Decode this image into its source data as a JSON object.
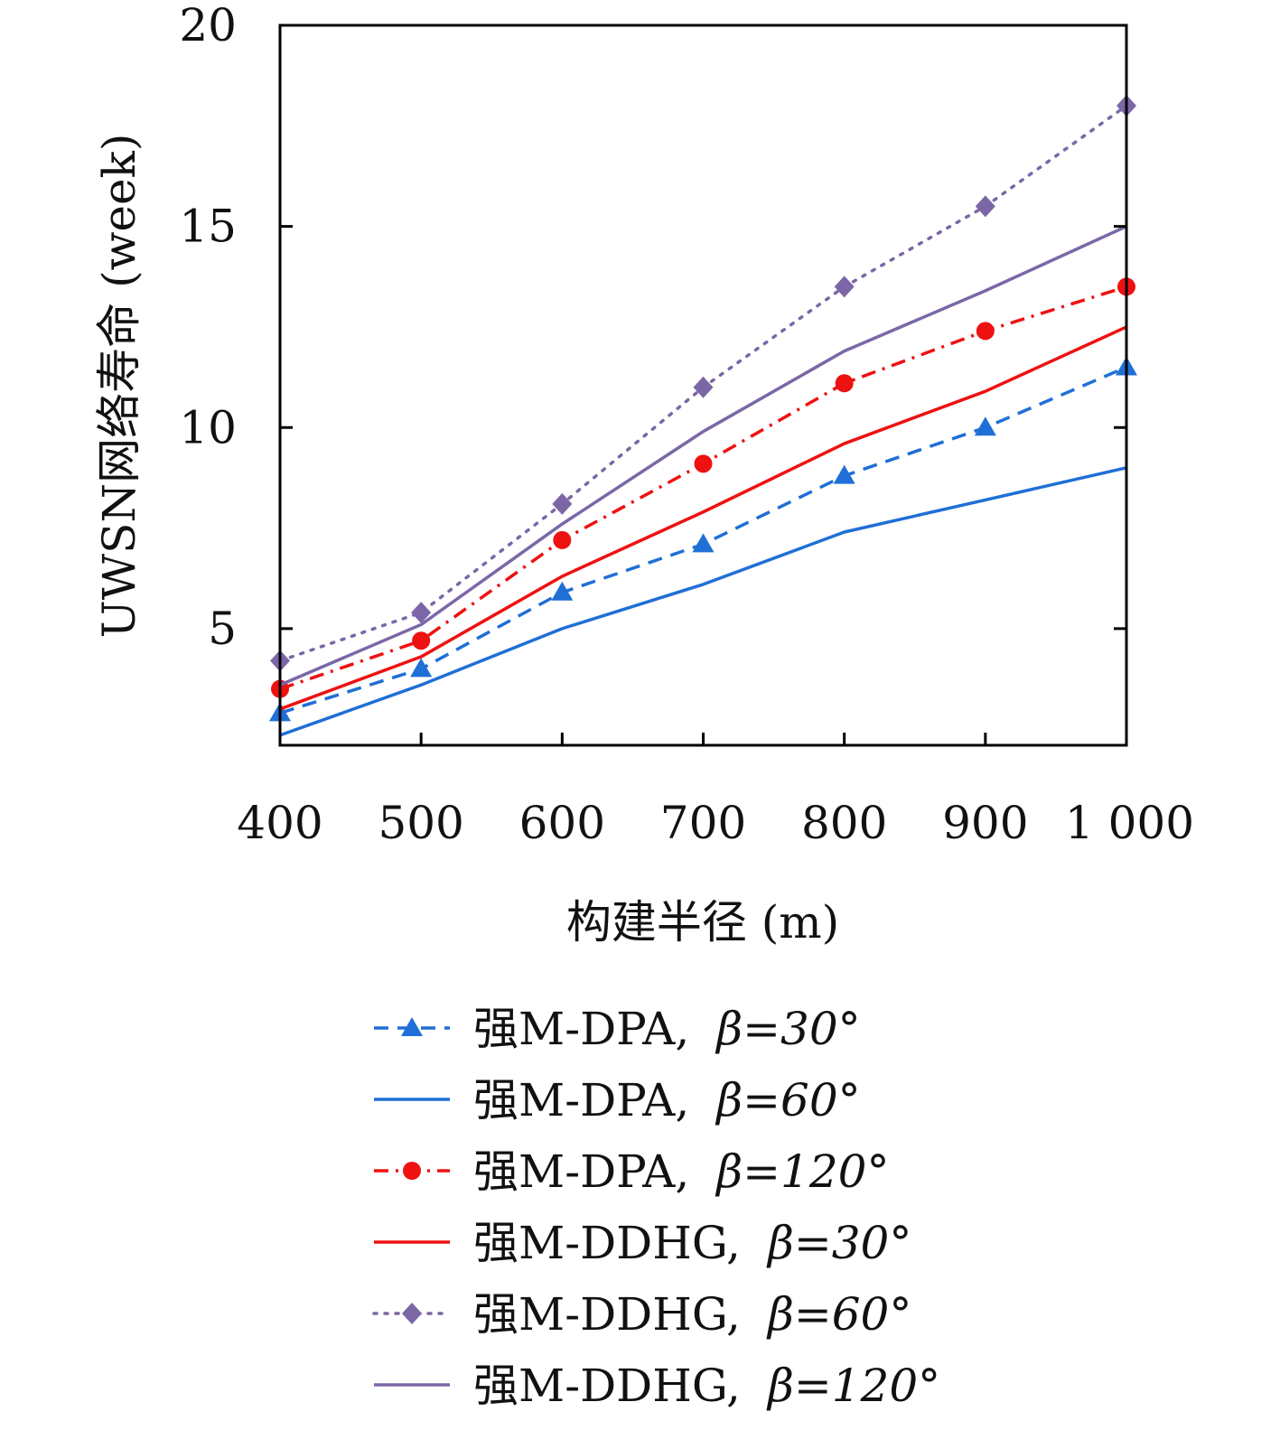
{
  "chart_data": {
    "type": "line",
    "xlabel": "构建半径 (m)",
    "ylabel": "UWSN网络寿命 (week)",
    "x": [
      400,
      500,
      600,
      700,
      800,
      900,
      1000
    ],
    "x_tick_labels": [
      "400",
      "500",
      "600",
      "700",
      "800",
      "900",
      "1 000"
    ],
    "y_ticks": [
      5,
      10,
      15,
      20
    ],
    "y_tick_labels": [
      "5",
      "10",
      "15",
      "20"
    ],
    "xlim": [
      400,
      1000
    ],
    "ylim": [
      2.1,
      20
    ],
    "grid": false,
    "legend_position": "bottom",
    "series": [
      {
        "name": "强M-DPA, β=30°",
        "label_main": "强M-DPA,",
        "label_math": "β=30°",
        "values": [
          2.9,
          4.0,
          5.9,
          7.1,
          8.8,
          10.0,
          11.5
        ],
        "color": "#1f6fd6",
        "dash": "dashed",
        "marker": "triangle"
      },
      {
        "name": "强M-DPA, β=60°",
        "label_main": "强M-DPA,",
        "label_math": "β=60°",
        "values": [
          2.35,
          3.6,
          5.0,
          6.1,
          7.4,
          8.2,
          9.0
        ],
        "color": "#1f6fd6",
        "dash": "solid",
        "marker": "none"
      },
      {
        "name": "强M-DPA, β=120°",
        "label_main": "强M-DPA,",
        "label_math": "β=120°",
        "values": [
          3.5,
          4.7,
          7.2,
          9.1,
          11.1,
          12.4,
          13.5
        ],
        "color": "#ee1111",
        "dash": "dashdot",
        "marker": "circle"
      },
      {
        "name": "强M-DDHG, β=30°",
        "label_main": "强M-DDHG,",
        "label_math": "β=30°",
        "values": [
          3.0,
          4.3,
          6.3,
          7.9,
          9.6,
          10.9,
          12.5
        ],
        "color": "#ee1111",
        "dash": "solid",
        "marker": "none"
      },
      {
        "name": "强M-DDHG, β=60°",
        "label_main": "强M-DDHG,",
        "label_math": "β=60°",
        "values": [
          4.2,
          5.4,
          8.1,
          11.0,
          13.5,
          15.5,
          18.0
        ],
        "color": "#7b67a6",
        "dash": "dotted",
        "marker": "diamond"
      },
      {
        "name": "强M-DDHG, β=120°",
        "label_main": "强M-DDHG,",
        "label_math": "β=120°",
        "values": [
          3.6,
          5.1,
          7.6,
          9.9,
          11.9,
          13.4,
          15.0
        ],
        "color": "#7b67a6",
        "dash": "solid",
        "marker": "none"
      }
    ]
  }
}
